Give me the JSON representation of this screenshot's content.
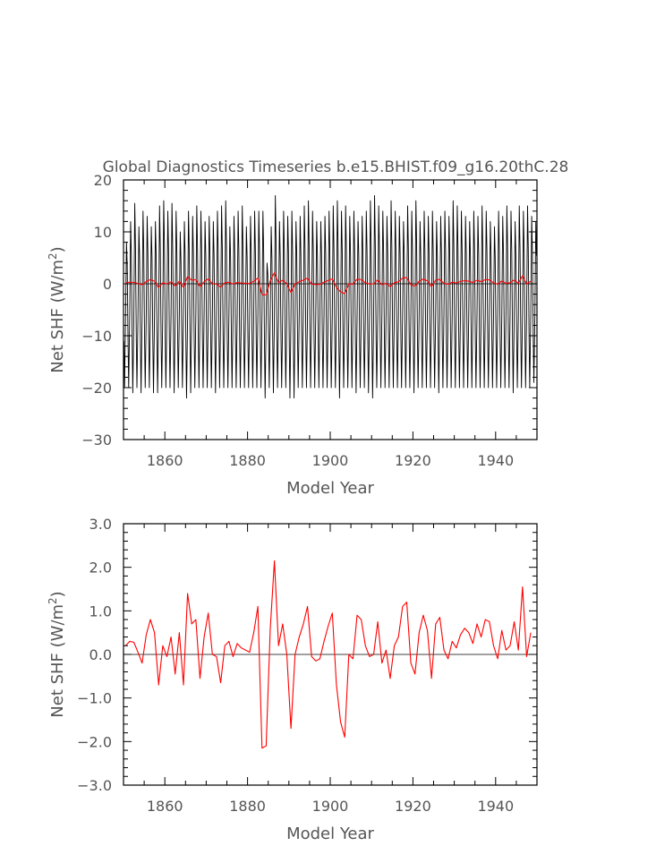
{
  "chart_data": [
    {
      "type": "line",
      "title": "Global Diagnostics Timeseries b.e15.BHIST.f09_g16.20thC.28",
      "xlabel": "Model Year",
      "ylabel": "Net SHF (W/m²)",
      "ylabel_base": "Net SHF (W/m",
      "ylabel_sup": "2",
      "ylabel_tail": ")",
      "xlim": [
        1850,
        1950
      ],
      "ylim": [
        -30,
        20
      ],
      "xticks": [
        1860,
        1880,
        1900,
        1920,
        1940
      ],
      "yticks": [
        20,
        10,
        0,
        -10,
        -20,
        -30
      ],
      "ytick_labels": [
        "20",
        "10",
        "0",
        "−10",
        "−20",
        "−30"
      ],
      "zero_line": true,
      "series": [
        {
          "color": "#000000",
          "description_of_values": "monthly",
          "monthly": {
            "start_year": 1850,
            "end_year": 1950,
            "summer_peaks": [
              8,
              12,
              15.5,
              11,
              14,
              13,
              11,
              12,
              15,
              16,
              14,
              15.5,
              14,
              10,
              12,
              14,
              13,
              15,
              14,
              12,
              13,
              12,
              14,
              15,
              16,
              11,
              13,
              14,
              15,
              11,
              13,
              14,
              14,
              14,
              4,
              11,
              17,
              12,
              14,
              13,
              14,
              12,
              13,
              15,
              16,
              14,
              12,
              12,
              13,
              14,
              15,
              16,
              14,
              15,
              13,
              14,
              12,
              13,
              14,
              16,
              17,
              15,
              14,
              13,
              16,
              14,
              13,
              12,
              15,
              14,
              16,
              12,
              14,
              13,
              14,
              12,
              13,
              14,
              13,
              16,
              15,
              14,
              13,
              12,
              14,
              13,
              15,
              14,
              12,
              11,
              14,
              13,
              15,
              14,
              12,
              15,
              14,
              15,
              13,
              12
            ],
            "winter_troughs": [
              -20,
              -20,
              -21,
              -20,
              -21,
              -20,
              -20,
              -21,
              -21,
              -20,
              -20,
              -20,
              -21,
              -20,
              -20,
              -22,
              -21,
              -20,
              -20,
              -20,
              -20,
              -20,
              -21,
              -20,
              -20,
              -20,
              -20,
              -20,
              -20,
              -20,
              -20,
              -20,
              -20,
              -20,
              -22,
              -20,
              -21,
              -20,
              -20,
              -20,
              -22,
              -22,
              -20,
              -20,
              -20,
              -20,
              -20,
              -20,
              -20,
              -20,
              -20,
              -20,
              -22,
              -20,
              -20,
              -20,
              -21,
              -20,
              -20,
              -21,
              -22,
              -20,
              -20,
              -20,
              -20,
              -20,
              -20,
              -20,
              -20,
              -20,
              -21,
              -20,
              -20,
              -20,
              -20,
              -20,
              -21,
              -20,
              -20,
              -20,
              -20,
              -20,
              -20,
              -20,
              -20,
              -20,
              -20,
              -20,
              -20,
              -20,
              -20,
              -20,
              -20,
              -20,
              -21,
              -20,
              -20,
              -20,
              -20,
              -19
            ]
          }
        },
        {
          "color": "#ff0000",
          "description_of_values": "annual",
          "x_start": 1850,
          "x_step": 1,
          "values": [
            0.2,
            0.3,
            0.28,
            0.05,
            -0.2,
            0.45,
            0.8,
            0.5,
            -0.7,
            0.2,
            -0.05,
            0.4,
            -0.45,
            0.5,
            -0.7,
            1.4,
            0.7,
            0.8,
            -0.55,
            0.4,
            0.95,
            0.0,
            -0.05,
            -0.65,
            0.2,
            0.3,
            -0.05,
            0.25,
            0.15,
            0.1,
            0.05,
            0.5,
            1.1,
            -2.15,
            -2.1,
            0.6,
            2.15,
            0.2,
            0.7,
            0.0,
            -1.7,
            0.0,
            0.4,
            0.7,
            1.1,
            -0.05,
            -0.15,
            -0.1,
            0.3,
            0.65,
            0.95,
            -0.7,
            -1.55,
            -1.9,
            0.0,
            -0.1,
            0.9,
            0.8,
            0.2,
            -0.05,
            0.0,
            0.75,
            -0.2,
            0.1,
            -0.55,
            0.2,
            0.4,
            1.1,
            1.2,
            -0.2,
            -0.45,
            0.5,
            0.9,
            0.55,
            -0.55,
            0.7,
            0.85,
            0.1,
            -0.1,
            0.3,
            0.15,
            0.45,
            0.6,
            0.5,
            0.25,
            0.7,
            0.4,
            0.8,
            0.75,
            0.2,
            -0.1,
            0.55,
            0.1,
            0.2,
            0.75,
            0.1,
            1.55,
            -0.05,
            0.5
          ]
        }
      ]
    },
    {
      "type": "line",
      "title": "",
      "xlabel": "Model Year",
      "ylabel": "Net SHF (W/m²)",
      "ylabel_base": "Net SHF (W/m",
      "ylabel_sup": "2",
      "ylabel_tail": ")",
      "xlim": [
        1850,
        1950
      ],
      "ylim": [
        -3,
        3
      ],
      "xticks": [
        1860,
        1880,
        1900,
        1920,
        1940
      ],
      "yticks": [
        3,
        2,
        1,
        0,
        -1,
        -2,
        -3
      ],
      "ytick_labels": [
        "3.0",
        "2.0",
        "1.0",
        "0.0",
        "−1.0",
        "−2.0",
        "−3.0"
      ],
      "zero_line": true,
      "series": [
        {
          "color": "#ff0000",
          "x_start": 1850,
          "x_step": 1,
          "values": [
            0.2,
            0.3,
            0.28,
            0.05,
            -0.2,
            0.45,
            0.8,
            0.5,
            -0.7,
            0.2,
            -0.05,
            0.4,
            -0.45,
            0.5,
            -0.7,
            1.4,
            0.7,
            0.8,
            -0.55,
            0.4,
            0.95,
            0.0,
            -0.05,
            -0.65,
            0.2,
            0.3,
            -0.05,
            0.25,
            0.15,
            0.1,
            0.05,
            0.5,
            1.1,
            -2.15,
            -2.1,
            0.6,
            2.15,
            0.2,
            0.7,
            0.0,
            -1.7,
            0.0,
            0.4,
            0.7,
            1.1,
            -0.05,
            -0.15,
            -0.1,
            0.3,
            0.65,
            0.95,
            -0.7,
            -1.55,
            -1.9,
            0.0,
            -0.1,
            0.9,
            0.8,
            0.2,
            -0.05,
            0.0,
            0.75,
            -0.2,
            0.1,
            -0.55,
            0.2,
            0.4,
            1.1,
            1.2,
            -0.2,
            -0.45,
            0.5,
            0.9,
            0.55,
            -0.55,
            0.7,
            0.85,
            0.1,
            -0.1,
            0.3,
            0.15,
            0.45,
            0.6,
            0.5,
            0.25,
            0.7,
            0.4,
            0.8,
            0.75,
            0.2,
            -0.1,
            0.55,
            0.1,
            0.2,
            0.75,
            0.1,
            1.55,
            -0.05,
            0.5
          ]
        }
      ]
    }
  ]
}
